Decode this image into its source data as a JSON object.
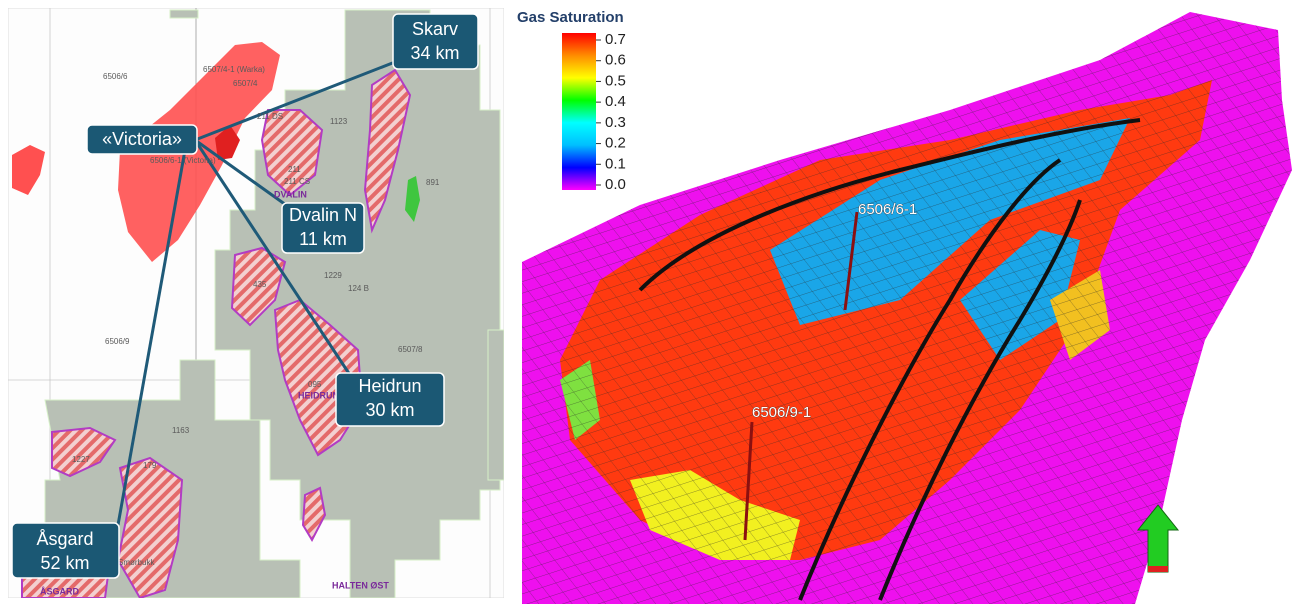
{
  "map": {
    "callouts": [
      {
        "name": "Skarv",
        "distance": "34 km"
      },
      {
        "name": "«Victoria»"
      },
      {
        "name": "Dvalin N",
        "distance": "11 km"
      },
      {
        "name": "Heidrun",
        "distance": "30 km"
      },
      {
        "name": "Åsgard",
        "distance": "52 km"
      }
    ],
    "labels": [
      "6506/6",
      "6507/4-1 (Warka)",
      "6507/4",
      "1123",
      "211 DS",
      "211",
      "211 CS",
      "DVALIN",
      "6506/6-1 (Victoria)",
      "891",
      "435",
      "1229",
      "124 B",
      "6506/9",
      "6507/8",
      "095",
      "HEIDRUN",
      "1163",
      "1227",
      "179",
      "Smørbukk",
      "ÅSGARD",
      "HALTEN ØST"
    ]
  },
  "model": {
    "colorbar": {
      "title": "Gas Saturation",
      "range": [
        0,
        0.7
      ],
      "ticks": [
        0.7,
        0.6,
        0.5,
        0.4,
        0.3,
        0.2,
        0.1,
        {
          "value": 0,
          "label": "0.0"
        }
      ],
      "colors": [
        "#ff00ff",
        "#0000ff",
        "#00bfff",
        "#00ffff",
        "#00ff00",
        "#ffff00",
        "#ff8c00",
        "#ff0000"
      ]
    },
    "wells": [
      "6506/6-1",
      "6506/9-1"
    ]
  }
}
